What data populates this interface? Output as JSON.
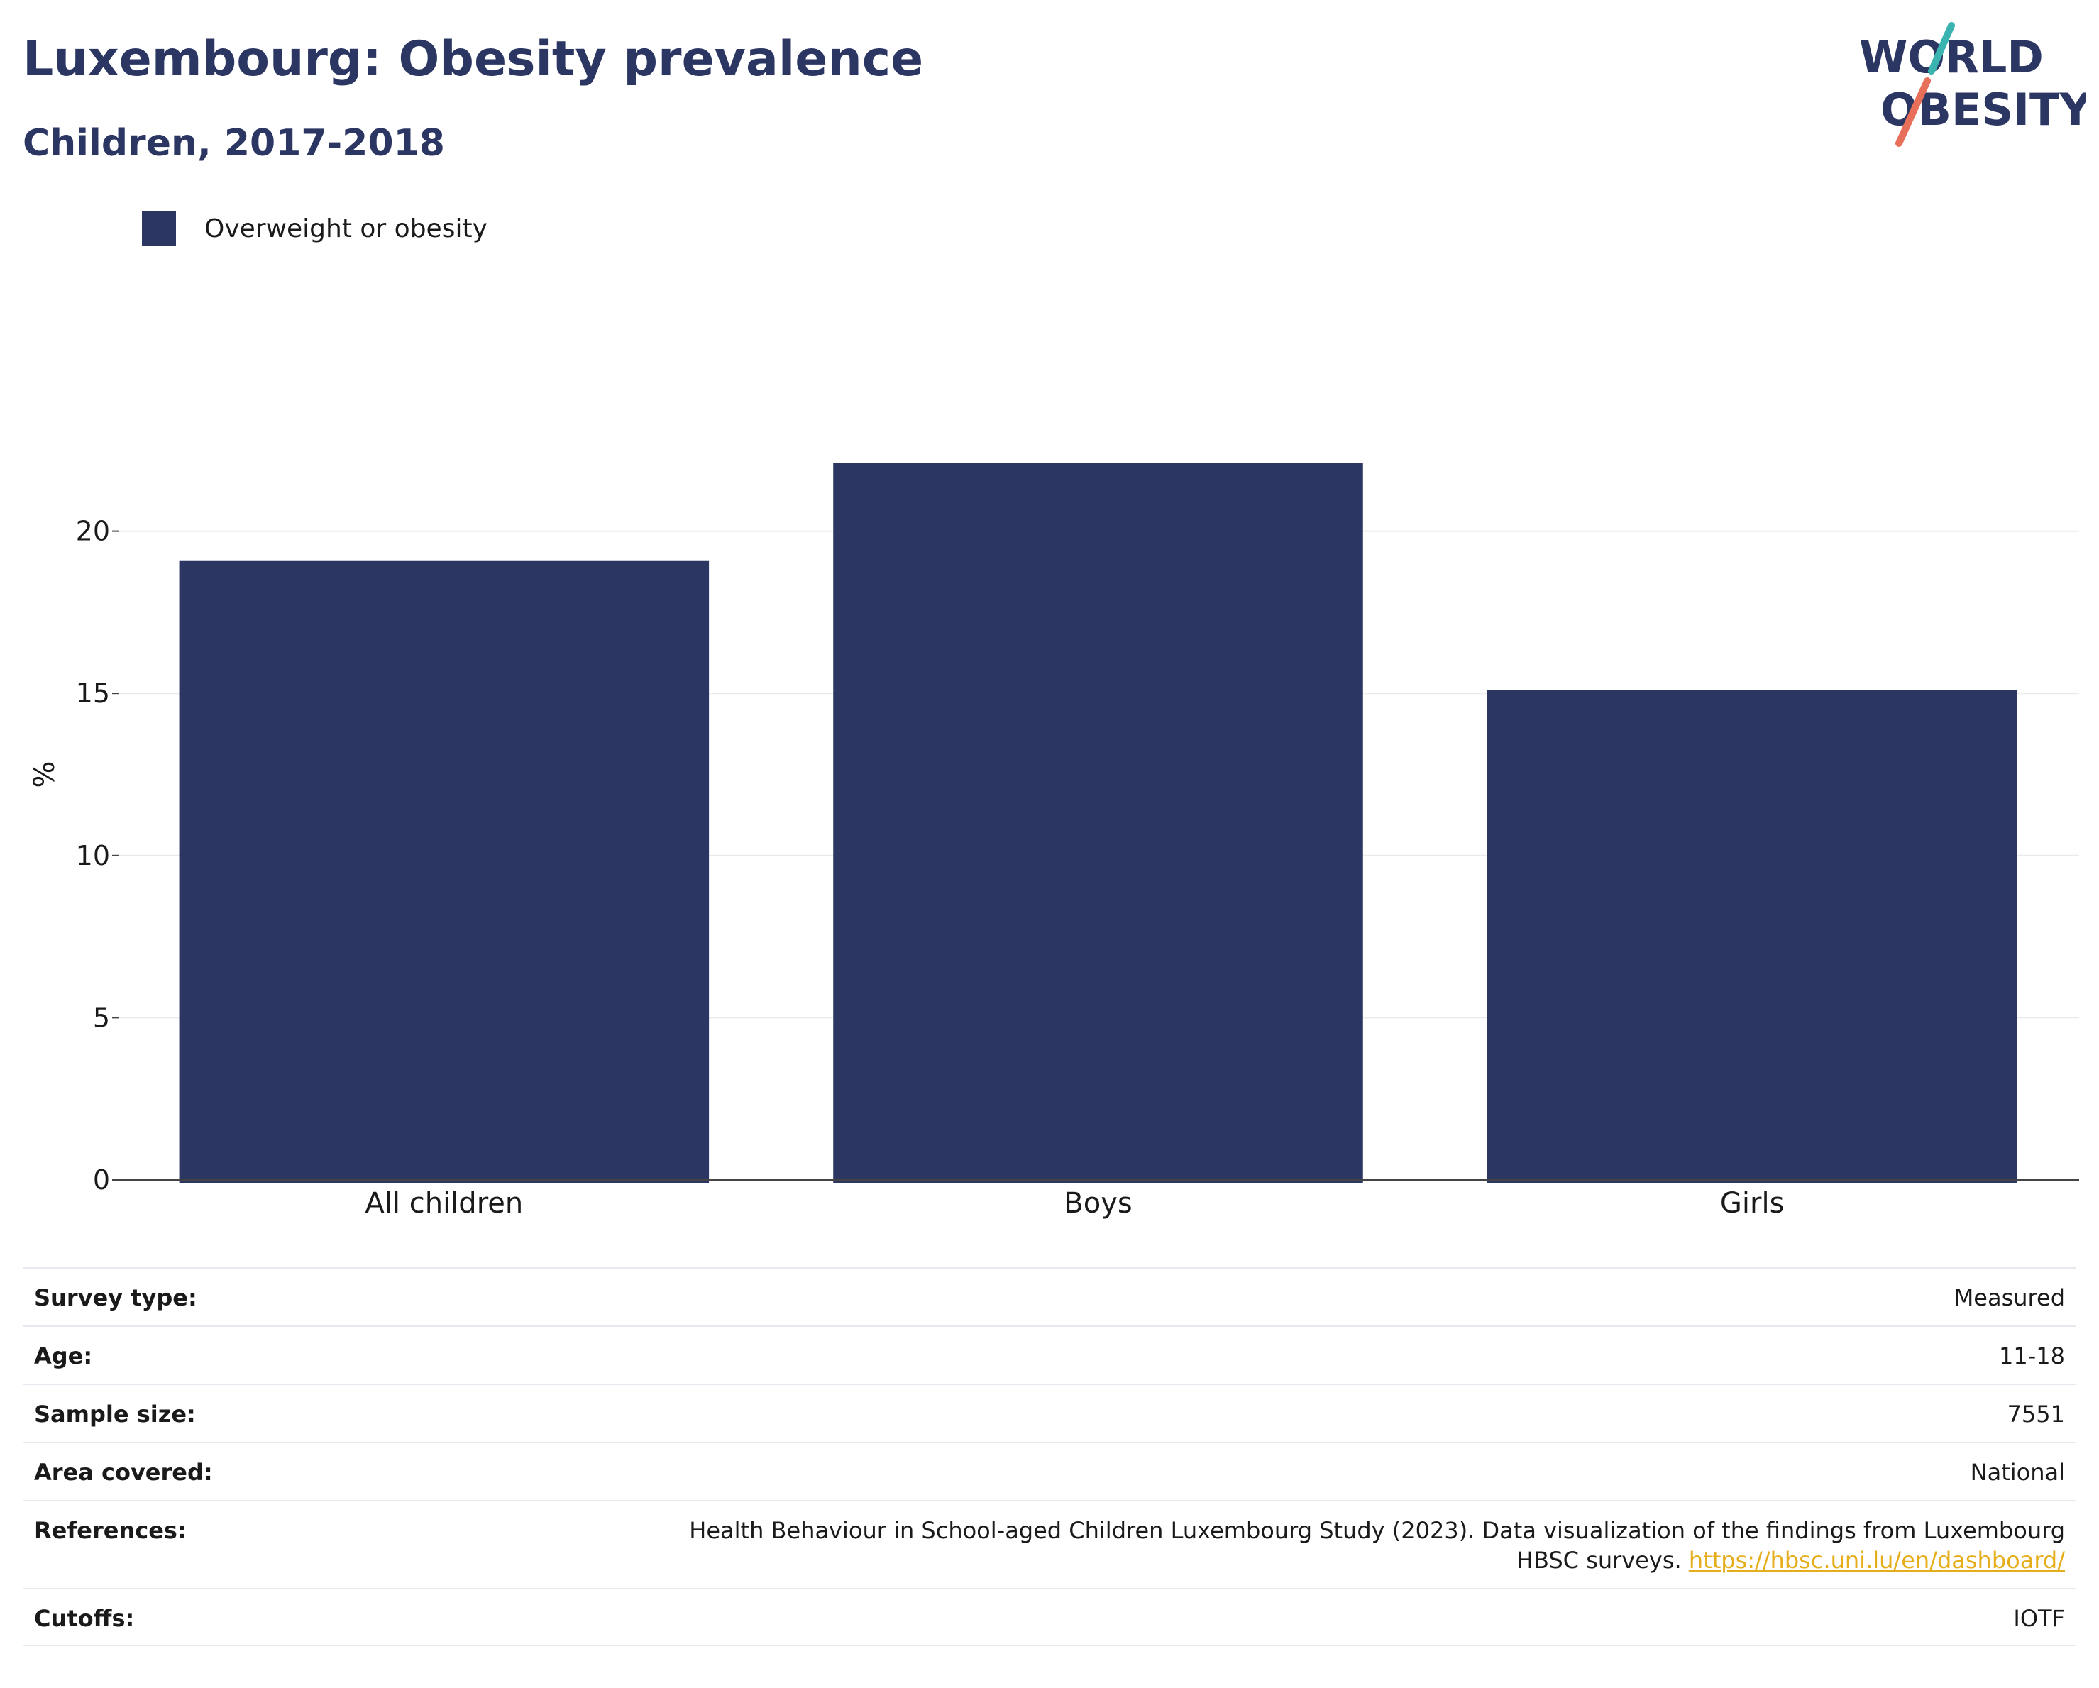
{
  "header": {
    "title": "Luxembourg: Obesity prevalence",
    "subtitle": "Children, 2017-2018"
  },
  "logo": {
    "line1": "WORLD",
    "line2": "OBESITY",
    "text_color": "#2b3663",
    "slash_teal": "#3bb3b0",
    "slash_coral": "#e8705a"
  },
  "legend": {
    "label": "Overweight or obesity",
    "color": "#2b3663"
  },
  "chart_data": {
    "type": "bar",
    "categories": [
      "All children",
      "Boys",
      "Girls"
    ],
    "series": [
      {
        "name": "Overweight or obesity",
        "values": [
          19.1,
          22.1,
          15.1
        ],
        "color": "#2b3663"
      }
    ],
    "ylabel": "%",
    "ylim": [
      0,
      25
    ],
    "yticks": [
      0,
      5,
      10,
      15,
      20
    ],
    "grid": true,
    "legend_position": "top-left"
  },
  "meta": {
    "rows": [
      {
        "label": "Survey type:",
        "value": "Measured"
      },
      {
        "label": "Age:",
        "value": "11-18"
      },
      {
        "label": "Sample size:",
        "value": "7551"
      },
      {
        "label": "Area covered:",
        "value": "National"
      },
      {
        "label": "References:",
        "value": "Health Behaviour in School-aged Children Luxembourg Study (2023). Data visualization of the findings from Luxembourg HBSC surveys.",
        "link": "https://hbsc.uni.lu/en/dashboard/"
      },
      {
        "label": "Cutoffs:",
        "value": "IOTF"
      }
    ],
    "link_color": "#e6ad1a"
  }
}
